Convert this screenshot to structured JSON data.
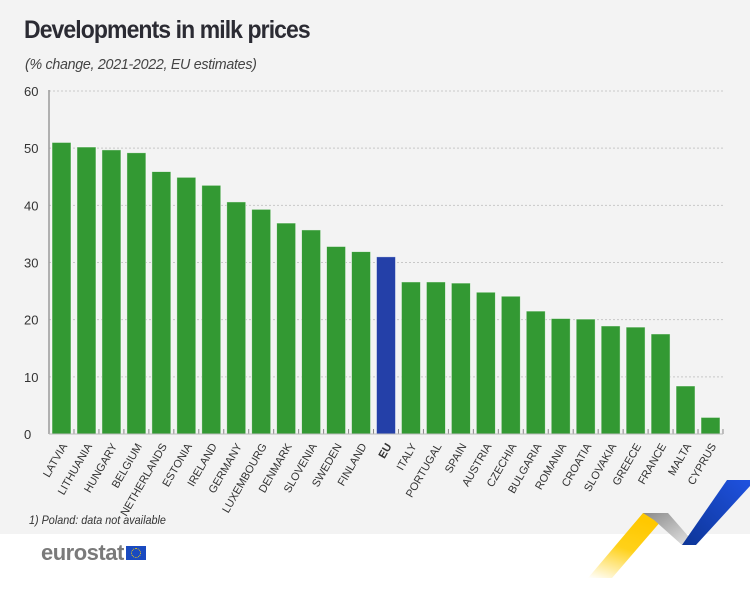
{
  "header": {
    "title": "Developments in milk prices",
    "subtitle": "(% change, 2021-2022, EU estimates)"
  },
  "footer": {
    "footnote": "1) Poland: data not available",
    "logo_text": "eurostat",
    "logo_icon": "eu-flag-icon"
  },
  "colors": {
    "country_bar": "#339933",
    "eu_bar": "#2440a8",
    "background": "#f3f3f3",
    "ribbon_yellow": "#ffcc00",
    "ribbon_grey": "#b0b0b0",
    "ribbon_blue": "#1a44c2"
  },
  "chart_data": {
    "type": "bar",
    "title": "Developments in milk prices",
    "subtitle": "(% change, 2021-2022, EU estimates)",
    "xlabel": "",
    "ylabel": "",
    "ylim": [
      0,
      60
    ],
    "yticks": [
      0,
      10,
      20,
      30,
      40,
      50,
      60
    ],
    "grid": true,
    "legend": "none",
    "highlight_category": "EU",
    "categories": [
      "LATVIA",
      "LITHUANIA",
      "HUNGARY",
      "BELGIUM",
      "NETHERLANDS",
      "ESTONIA",
      "IRELAND",
      "GERMANY",
      "LUXEMBOURG",
      "DENMARK",
      "SLOVENIA",
      "SWEDEN",
      "FINLAND",
      "EU",
      "ITALY",
      "PORTUGAL",
      "SPAIN",
      "AUSTRIA",
      "CZECHIA",
      "BULGARIA",
      "ROMANIA",
      "CROATIA",
      "SLOVAKIA",
      "GREECE",
      "FRANCE",
      "MALTA",
      "CYPRUS"
    ],
    "values": [
      51.0,
      50.2,
      49.7,
      49.2,
      45.9,
      44.9,
      43.5,
      40.6,
      39.3,
      36.9,
      35.7,
      32.8,
      31.9,
      31.0,
      26.6,
      26.6,
      26.4,
      24.8,
      24.1,
      21.5,
      20.2,
      20.1,
      18.9,
      18.7,
      17.5,
      8.4,
      2.9
    ],
    "footnote": "1) Poland: data not available"
  }
}
